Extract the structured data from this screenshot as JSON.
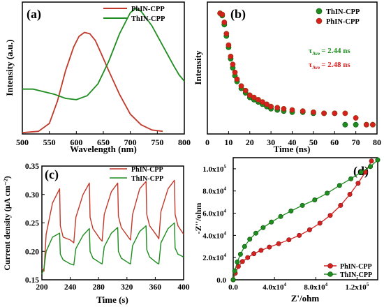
{
  "chart_data": [
    {
      "panel": "(a)",
      "type": "line",
      "xlabel": "Wavelength (nm)",
      "ylabel": "Intensity (a.u.)",
      "xlim": [
        500,
        800
      ],
      "xticks": [
        "500",
        "550",
        "600",
        "650",
        "700",
        "750",
        "800"
      ],
      "legend_position": "top-right",
      "series": [
        {
          "name": "PhIN-CPP",
          "color": "#c0392b",
          "x": [
            500,
            530,
            550,
            565,
            580,
            595,
            605,
            615,
            625,
            635,
            645,
            660,
            680,
            700,
            720,
            740,
            760
          ],
          "y": [
            0.01,
            0.02,
            0.08,
            0.25,
            0.48,
            0.66,
            0.74,
            0.77,
            0.76,
            0.71,
            0.62,
            0.48,
            0.3,
            0.15,
            0.07,
            0.03,
            0.02
          ]
        },
        {
          "name": "ThIN-CPP",
          "color": "#1e8c1e",
          "x": [
            500,
            520,
            540,
            560,
            580,
            600,
            620,
            640,
            660,
            680,
            700,
            710,
            720,
            740,
            760,
            780,
            790,
            800
          ],
          "y": [
            0.34,
            0.34,
            0.32,
            0.3,
            0.27,
            0.26,
            0.29,
            0.38,
            0.55,
            0.76,
            0.92,
            0.95,
            0.93,
            0.82,
            0.67,
            0.52,
            0.45,
            0.4
          ]
        }
      ]
    },
    {
      "panel": "(b)",
      "type": "scatter",
      "xlabel": "Time (ns)",
      "ylabel": "Intensity",
      "xlim": [
        0,
        80
      ],
      "xticks": [
        "0",
        "10",
        "20",
        "30",
        "40",
        "50",
        "60",
        "70",
        "80"
      ],
      "legend_position": "top-right",
      "annotations": [
        {
          "label": "τ",
          "sub": "Ave",
          "value": "= 2.44 ns",
          "color": "#1e8c1e"
        },
        {
          "label": "τ",
          "sub": "Ave",
          "value": "= 2.48 ns",
          "color": "#d62020"
        }
      ],
      "series": [
        {
          "name": "ThIN-CPP",
          "color": "#1e8c1e",
          "x": [
            6,
            7,
            8,
            9,
            10,
            11,
            12,
            13,
            14,
            16,
            18,
            20,
            22,
            24,
            26,
            28,
            30,
            33,
            36,
            40,
            45,
            50,
            55,
            60,
            65,
            70,
            75,
            78
          ],
          "y": [
            1.0,
            0.98,
            0.9,
            0.8,
            0.7,
            0.6,
            0.52,
            0.45,
            0.4,
            0.34,
            0.3,
            0.26,
            0.24,
            0.22,
            0.2,
            0.18,
            0.16,
            0.15,
            0.14,
            0.13,
            0.13,
            0.12,
            0.12,
            0.12,
            0.02,
            0.02,
            0.02,
            0.02
          ]
        },
        {
          "name": "PhIN-CPP",
          "color": "#d62020",
          "x": [
            6,
            7,
            8,
            9,
            10,
            11,
            12,
            13,
            14,
            16,
            18,
            20,
            22,
            24,
            26,
            28,
            30,
            33,
            36,
            40,
            45,
            50,
            55,
            60,
            65,
            70,
            75,
            78
          ],
          "y": [
            1.0,
            0.99,
            0.92,
            0.82,
            0.72,
            0.62,
            0.55,
            0.48,
            0.42,
            0.36,
            0.32,
            0.28,
            0.26,
            0.24,
            0.22,
            0.2,
            0.18,
            0.17,
            0.16,
            0.15,
            0.14,
            0.13,
            0.12,
            0.12,
            0.12,
            0.08,
            0.02,
            0.02
          ]
        }
      ]
    },
    {
      "panel": "(c)",
      "type": "line",
      "xlabel": "Time (s)",
      "ylabel": "Current density (μA cm⁻²)",
      "xlim": [
        200,
        400
      ],
      "ylim": [
        0.15,
        0.35
      ],
      "xticks": [
        "200",
        "240",
        "280",
        "320",
        "360",
        "400"
      ],
      "yticks": [
        "0.15",
        "0.20",
        "0.25",
        "0.30",
        "0.35"
      ],
      "legend_position": "top-right",
      "series": [
        {
          "name": "PhIN-CPP",
          "color": "#c0392b",
          "x": [
            200,
            203,
            206,
            215,
            225,
            226,
            230,
            240,
            245,
            248,
            258,
            267,
            268,
            272,
            282,
            285,
            288,
            298,
            307,
            308,
            312,
            322,
            325,
            328,
            338,
            347,
            348,
            352,
            362,
            365,
            368,
            378,
            387,
            388,
            392,
            400
          ],
          "y": [
            0.17,
            0.165,
            0.23,
            0.285,
            0.31,
            0.245,
            0.225,
            0.22,
            0.215,
            0.26,
            0.3,
            0.32,
            0.26,
            0.24,
            0.222,
            0.218,
            0.265,
            0.305,
            0.32,
            0.262,
            0.242,
            0.225,
            0.22,
            0.265,
            0.31,
            0.323,
            0.265,
            0.245,
            0.228,
            0.222,
            0.27,
            0.31,
            0.325,
            0.265,
            0.245,
            0.23
          ]
        },
        {
          "name": "ThIN-CPP",
          "color": "#1e8c1e",
          "x": [
            200,
            203,
            206,
            215,
            225,
            226,
            230,
            240,
            245,
            248,
            258,
            267,
            268,
            272,
            282,
            285,
            288,
            298,
            307,
            308,
            312,
            322,
            325,
            328,
            338,
            347,
            348,
            352,
            362,
            365,
            368,
            378,
            387,
            388,
            392,
            400
          ],
          "y": [
            0.16,
            0.17,
            0.2,
            0.225,
            0.232,
            0.195,
            0.185,
            0.178,
            0.176,
            0.205,
            0.228,
            0.24,
            0.2,
            0.188,
            0.18,
            0.178,
            0.208,
            0.232,
            0.242,
            0.2,
            0.188,
            0.18,
            0.178,
            0.21,
            0.235,
            0.245,
            0.203,
            0.19,
            0.18,
            0.178,
            0.215,
            0.24,
            0.25,
            0.206,
            0.195,
            0.19
          ]
        }
      ]
    },
    {
      "panel": "(d)",
      "type": "scatter",
      "xlabel": "Z'/ohm",
      "ylabel": "-Z''/ohm",
      "xlim": [
        0,
        140000
      ],
      "ylim": [
        0,
        110000
      ],
      "xticks": [
        "0.0",
        "4.0x10",
        "8.0x10",
        "1.2x10"
      ],
      "yticks": [
        "0.0",
        "2.0x10",
        "4.0x10",
        "6.0x10",
        "8.0x10",
        "1.0x10"
      ],
      "xtick_exp": [
        "",
        "4",
        "4",
        "5"
      ],
      "ytick_exp": [
        "",
        "4",
        "4",
        "4",
        "4",
        "5"
      ],
      "legend_position": "bottom-right",
      "series": [
        {
          "name": "PhIN-CPP",
          "color": "#d62020",
          "x": [
            0,
            2000,
            5000,
            9000,
            14000,
            20000,
            27000,
            35000,
            44000,
            54000,
            64000,
            74000,
            84000,
            94000,
            104000,
            113000,
            121000,
            128000,
            134000
          ],
          "y": [
            0,
            6000,
            12000,
            16500,
            20000,
            23500,
            26500,
            29500,
            32500,
            36000,
            40000,
            45000,
            51000,
            58000,
            67000,
            77000,
            87000,
            97000,
            107000
          ]
        },
        {
          "name": "ThIN-CPP",
          "color": "#1e8c1e",
          "x": [
            0,
            1500,
            4000,
            7000,
            11000,
            16000,
            22000,
            29000,
            37000,
            46000,
            56000,
            67000,
            79000,
            91000,
            103000,
            114000,
            124000,
            133000,
            140000
          ],
          "y": [
            0,
            8000,
            16000,
            23000,
            30000,
            36500,
            42000,
            47000,
            52000,
            57000,
            62000,
            67000,
            72000,
            78000,
            85000,
            91000,
            97000,
            102000,
            108000
          ]
        }
      ]
    }
  ]
}
